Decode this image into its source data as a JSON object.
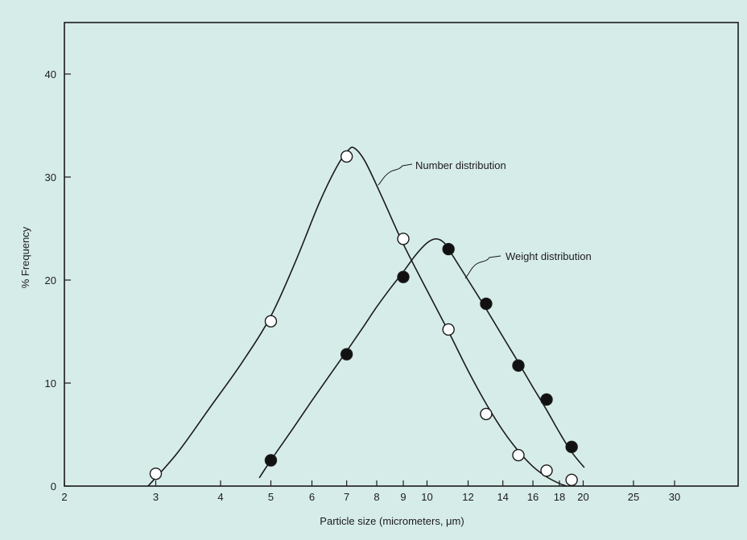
{
  "chart_data": {
    "type": "line",
    "title": "",
    "xlabel": "Particle size (micrometers, μm)",
    "ylabel": "% Frequency",
    "x_scale": "log",
    "xlim": [
      2,
      40
    ],
    "ylim": [
      0,
      45
    ],
    "x_ticks": [
      2,
      3,
      4,
      5,
      6,
      7,
      8,
      9,
      10,
      12,
      14,
      16,
      18,
      20,
      25,
      30
    ],
    "x_tick_labels": [
      "2",
      "3",
      "4",
      "5",
      "6",
      "7",
      "8",
      "9",
      "10",
      "12",
      "14",
      "16",
      "18",
      "20",
      "25",
      "30"
    ],
    "y_ticks": [
      0,
      10,
      20,
      30,
      40
    ],
    "y_tick_labels": [
      "0",
      "10",
      "20",
      "30",
      "40"
    ],
    "grid": false,
    "legend": "none",
    "annotations": [
      {
        "text": "Number distribution",
        "series": "number"
      },
      {
        "text": "Weight distribution",
        "series": "weight"
      }
    ],
    "series": [
      {
        "id": "number",
        "marker": "open-circle",
        "points": {
          "x": [
            3,
            5,
            7,
            9,
            11,
            13,
            15,
            17,
            19
          ],
          "y": [
            1.2,
            16,
            32,
            24,
            15.2,
            7,
            3,
            1.5,
            0.6
          ]
        },
        "curve": {
          "x": [
            2.9,
            3.3,
            3.8,
            4.4,
            5,
            5.6,
            6.2,
            6.7,
            7.05,
            7.25,
            7.6,
            8.2,
            9,
            10,
            11,
            12,
            13,
            14,
            15,
            16,
            17,
            18,
            18.6
          ],
          "y": [
            0,
            3.2,
            7.5,
            12,
            16.5,
            22,
            27.5,
            31,
            32.6,
            32.8,
            31.5,
            28,
            23.5,
            19,
            15,
            11.2,
            8,
            5.4,
            3.4,
            1.9,
            0.9,
            0.25,
            0
          ]
        }
      },
      {
        "id": "weight",
        "marker": "filled-circle",
        "points": {
          "x": [
            5,
            7,
            9,
            11,
            13,
            15,
            17,
            19
          ],
          "y": [
            2.5,
            12.8,
            20.3,
            23,
            17.7,
            11.7,
            8.4,
            3.8
          ]
        },
        "curve": {
          "x": [
            4.75,
            5,
            5.5,
            6,
            6.5,
            7,
            7.5,
            8,
            8.5,
            9,
            9.5,
            10,
            10.4,
            10.8,
            11.2,
            12,
            13,
            14,
            15,
            16,
            17,
            18,
            19,
            20.1
          ],
          "y": [
            0.8,
            2.5,
            5.5,
            8.3,
            10.8,
            13.1,
            15.3,
            17.4,
            19.2,
            20.8,
            22.4,
            23.6,
            24,
            23.6,
            22.4,
            20,
            17.2,
            14.5,
            12,
            9.6,
            7.4,
            5.2,
            3.3,
            1.8
          ]
        }
      }
    ]
  }
}
